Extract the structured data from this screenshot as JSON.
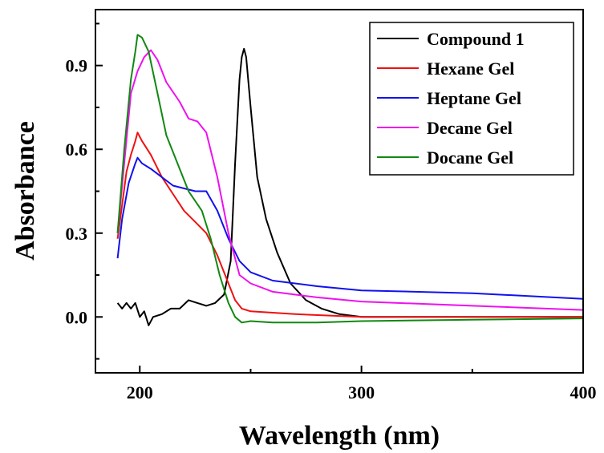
{
  "chart_data": {
    "type": "line",
    "xlabel": "Wavelength (nm)",
    "ylabel": "Absorbance",
    "xlim": [
      180,
      400
    ],
    "ylim": [
      -0.2,
      1.1
    ],
    "xticks": [
      200,
      300,
      400
    ],
    "xtick_labels": [
      "200",
      "300",
      "400"
    ],
    "yticks": [
      0.0,
      0.3,
      0.6,
      0.9
    ],
    "ytick_labels": [
      "0.0",
      "0.3",
      "0.6",
      "0.9"
    ],
    "grid": false,
    "legend_position": "top-right",
    "series": [
      {
        "name": "Compound 1",
        "color": "#000000",
        "points": [
          [
            190,
            0.05
          ],
          [
            192,
            0.03
          ],
          [
            194,
            0.05
          ],
          [
            196,
            0.03
          ],
          [
            198,
            0.05
          ],
          [
            200,
            0.0
          ],
          [
            202,
            0.02
          ],
          [
            204,
            -0.03
          ],
          [
            206,
            0.0
          ],
          [
            210,
            0.01
          ],
          [
            214,
            0.03
          ],
          [
            218,
            0.03
          ],
          [
            222,
            0.06
          ],
          [
            226,
            0.05
          ],
          [
            230,
            0.04
          ],
          [
            234,
            0.05
          ],
          [
            238,
            0.08
          ],
          [
            241,
            0.2
          ],
          [
            243,
            0.55
          ],
          [
            245,
            0.85
          ],
          [
            246,
            0.93
          ],
          [
            247,
            0.96
          ],
          [
            248,
            0.93
          ],
          [
            250,
            0.75
          ],
          [
            253,
            0.5
          ],
          [
            257,
            0.35
          ],
          [
            262,
            0.23
          ],
          [
            268,
            0.12
          ],
          [
            275,
            0.06
          ],
          [
            282,
            0.03
          ],
          [
            290,
            0.01
          ],
          [
            300,
            0.0
          ],
          [
            400,
            0.0
          ]
        ]
      },
      {
        "name": "Hexane Gel",
        "color": "#ee1111",
        "points": [
          [
            190,
            0.28
          ],
          [
            192,
            0.4
          ],
          [
            194,
            0.52
          ],
          [
            196,
            0.58
          ],
          [
            198,
            0.63
          ],
          [
            199,
            0.66
          ],
          [
            201,
            0.63
          ],
          [
            205,
            0.58
          ],
          [
            210,
            0.5
          ],
          [
            215,
            0.44
          ],
          [
            220,
            0.38
          ],
          [
            225,
            0.34
          ],
          [
            230,
            0.3
          ],
          [
            235,
            0.22
          ],
          [
            240,
            0.12
          ],
          [
            243,
            0.06
          ],
          [
            246,
            0.03
          ],
          [
            250,
            0.02
          ],
          [
            270,
            0.01
          ],
          [
            300,
            0.0
          ],
          [
            400,
            0.0
          ]
        ]
      },
      {
        "name": "Heptane Gel",
        "color": "#1111ee",
        "points": [
          [
            190,
            0.21
          ],
          [
            192,
            0.35
          ],
          [
            195,
            0.48
          ],
          [
            198,
            0.55
          ],
          [
            199,
            0.57
          ],
          [
            201,
            0.55
          ],
          [
            205,
            0.53
          ],
          [
            210,
            0.5
          ],
          [
            215,
            0.47
          ],
          [
            220,
            0.46
          ],
          [
            225,
            0.45
          ],
          [
            230,
            0.45
          ],
          [
            235,
            0.38
          ],
          [
            240,
            0.28
          ],
          [
            245,
            0.2
          ],
          [
            250,
            0.16
          ],
          [
            260,
            0.13
          ],
          [
            280,
            0.11
          ],
          [
            300,
            0.095
          ],
          [
            350,
            0.085
          ],
          [
            400,
            0.065
          ]
        ]
      },
      {
        "name": "Decane Gel",
        "color": "#ee11ee",
        "points": [
          [
            190,
            0.3
          ],
          [
            193,
            0.55
          ],
          [
            196,
            0.8
          ],
          [
            199,
            0.88
          ],
          [
            202,
            0.93
          ],
          [
            205,
            0.955
          ],
          [
            208,
            0.92
          ],
          [
            212,
            0.84
          ],
          [
            218,
            0.77
          ],
          [
            222,
            0.71
          ],
          [
            226,
            0.7
          ],
          [
            230,
            0.66
          ],
          [
            235,
            0.5
          ],
          [
            240,
            0.3
          ],
          [
            245,
            0.15
          ],
          [
            250,
            0.12
          ],
          [
            260,
            0.09
          ],
          [
            280,
            0.07
          ],
          [
            300,
            0.055
          ],
          [
            350,
            0.04
          ],
          [
            400,
            0.025
          ]
        ]
      },
      {
        "name": "Docane Gel",
        "color": "#118811",
        "points": [
          [
            190,
            0.3
          ],
          [
            193,
            0.6
          ],
          [
            196,
            0.85
          ],
          [
            198,
            0.95
          ],
          [
            199,
            1.01
          ],
          [
            201,
            1.0
          ],
          [
            204,
            0.95
          ],
          [
            208,
            0.8
          ],
          [
            212,
            0.65
          ],
          [
            218,
            0.53
          ],
          [
            222,
            0.45
          ],
          [
            228,
            0.38
          ],
          [
            232,
            0.28
          ],
          [
            236,
            0.15
          ],
          [
            240,
            0.05
          ],
          [
            243,
            0.0
          ],
          [
            246,
            -0.02
          ],
          [
            250,
            -0.015
          ],
          [
            260,
            -0.02
          ],
          [
            280,
            -0.02
          ],
          [
            300,
            -0.015
          ],
          [
            350,
            -0.01
          ],
          [
            400,
            -0.005
          ]
        ]
      }
    ]
  }
}
